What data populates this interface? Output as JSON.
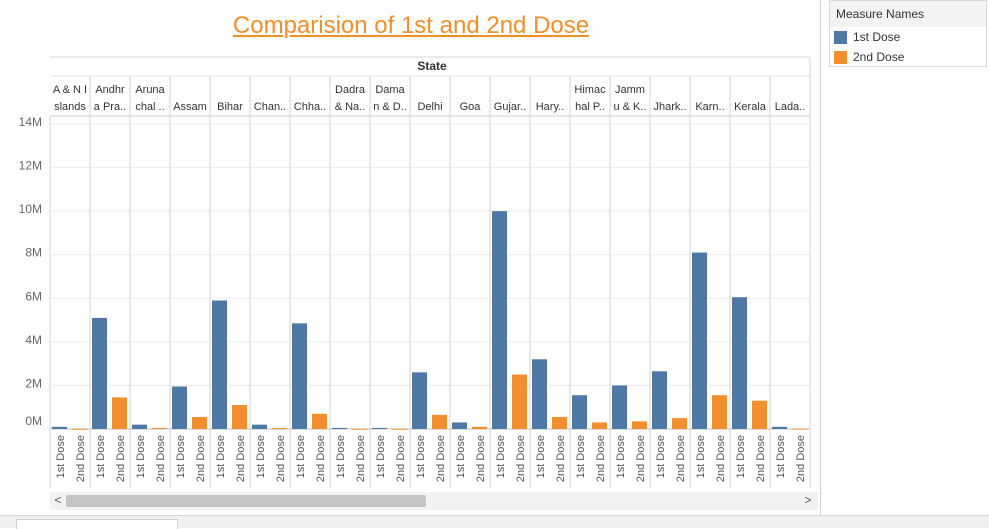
{
  "chart_data": {
    "type": "bar",
    "title": "Comparision  of 1st and 2nd Dose",
    "column_header": "State",
    "categories": [
      "A & N I slands",
      "Andhr a Pra..",
      "Aruna chal ..",
      "Assam",
      "Bihar",
      "Chan..",
      "Chha..",
      "Dadra & Na..",
      "Dama n & D..",
      "Delhi",
      "Goa",
      "Gujar..",
      "Hary..",
      "Himac hal P..",
      "Jamm u & K..",
      "Jhark..",
      "Karn..",
      "Kerala",
      "Lada.."
    ],
    "category_lines": [
      [
        "A & N I",
        "slands"
      ],
      [
        "Andhr",
        "a Pra.."
      ],
      [
        "Aruna",
        "chal .."
      ],
      [
        "",
        "Assam"
      ],
      [
        "",
        "Bihar"
      ],
      [
        "",
        "Chan.."
      ],
      [
        "",
        "Chha.."
      ],
      [
        "Dadra",
        "& Na.."
      ],
      [
        "Dama",
        "n & D.."
      ],
      [
        "",
        "Delhi"
      ],
      [
        "",
        "Goa"
      ],
      [
        "",
        "Gujar.."
      ],
      [
        "",
        "Hary.."
      ],
      [
        "Himac",
        "hal P.."
      ],
      [
        "Jamm",
        "u & K.."
      ],
      [
        "",
        "Jhark.."
      ],
      [
        "",
        "Karn.."
      ],
      [
        "",
        "Kerala"
      ],
      [
        "",
        "Lada.."
      ]
    ],
    "series": [
      {
        "name": "1st Dose",
        "color": "#4e79a7",
        "values": [
          100000,
          5100000,
          200000,
          1950000,
          5900000,
          200000,
          4850000,
          50000,
          50000,
          2600000,
          300000,
          10000000,
          3200000,
          1550000,
          2000000,
          2650000,
          8100000,
          6050000,
          100000
        ]
      },
      {
        "name": "2nd Dose",
        "color": "#f28e2b",
        "values": [
          10000,
          1450000,
          50000,
          550000,
          1100000,
          50000,
          700000,
          10000,
          10000,
          650000,
          100000,
          2500000,
          550000,
          300000,
          350000,
          500000,
          1550000,
          1300000,
          20000
        ]
      }
    ],
    "x_sub_labels": [
      "1st Dose",
      "2nd Dose"
    ],
    "y_ticks": [
      "0M",
      "2M",
      "4M",
      "6M",
      "8M",
      "10M",
      "12M",
      "14M"
    ],
    "ylim": [
      0,
      14000000
    ],
    "legend_title": "Measure Names",
    "legend_position": "top-right",
    "grid": true
  },
  "scroll": {
    "left_arrow": "<",
    "right_arrow": ">"
  }
}
